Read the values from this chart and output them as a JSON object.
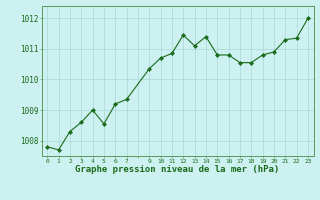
{
  "x": [
    0,
    1,
    2,
    3,
    4,
    5,
    6,
    7,
    9,
    10,
    11,
    12,
    13,
    14,
    15,
    16,
    17,
    18,
    19,
    20,
    21,
    22,
    23
  ],
  "y": [
    1007.8,
    1007.7,
    1008.3,
    1008.6,
    1009.0,
    1008.55,
    1009.2,
    1009.35,
    1010.35,
    1010.7,
    1010.85,
    1011.45,
    1011.1,
    1011.4,
    1010.8,
    1010.8,
    1010.55,
    1010.55,
    1010.8,
    1010.9,
    1011.3,
    1011.35,
    1012.0
  ],
  "line_color": "#1a6b1a",
  "marker": "D",
  "marker_size": 2.0,
  "bg_color": "#cdf0f0",
  "grid_color": "#aad8d8",
  "tick_color": "#1a6b1a",
  "label_color": "#1a6b1a",
  "xlabel": "Graphe pression niveau de la mer (hPa)",
  "xlabel_fontsize": 6.5,
  "ytick_fontsize": 5.5,
  "xtick_fontsize": 4.5,
  "yticks": [
    1008,
    1009,
    1010,
    1011,
    1012
  ],
  "xtick_labels": [
    "0",
    "1",
    "2",
    "3",
    "4",
    "5",
    "6",
    "7",
    "",
    "9",
    "10",
    "11",
    "12",
    "13",
    "14",
    "15",
    "16",
    "17",
    "18",
    "19",
    "20",
    "21",
    "22",
    "23"
  ],
  "ylim": [
    1007.5,
    1012.4
  ],
  "xlim": [
    -0.5,
    23.5
  ],
  "spine_color": "#5a9a5a"
}
